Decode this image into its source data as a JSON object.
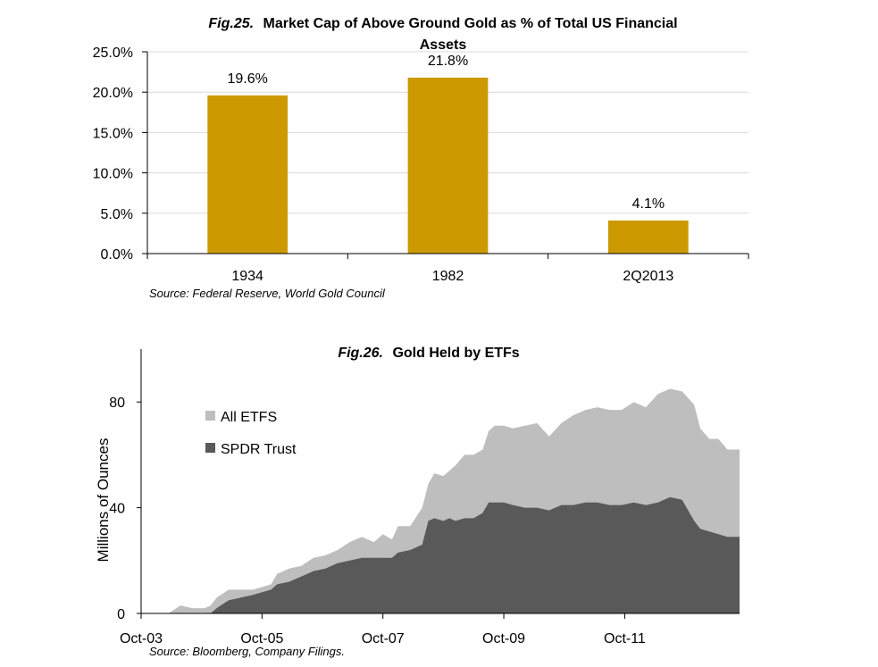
{
  "chart_data": [
    {
      "type": "bar",
      "fig_label": "Fig.25.",
      "title": "Market Cap of Above Ground Gold as % of Total US Financial Assets",
      "title_line1": "Market Cap of Above Ground Gold as % of Total US Financial",
      "title_line2": "Assets",
      "categories": [
        "1934",
        "1982",
        "2Q2013"
      ],
      "values": [
        19.6,
        21.8,
        4.1
      ],
      "data_labels": [
        "19.6%",
        "21.8%",
        "4.1%"
      ],
      "ylim": [
        0,
        25
      ],
      "yticks": [
        0,
        5,
        10,
        15,
        20,
        25
      ],
      "ytick_labels": [
        "0.0%",
        "5.0%",
        "10.0%",
        "15.0%",
        "20.0%",
        "25.0%"
      ],
      "grid": true,
      "bar_color": "#CC9900",
      "source": "Source:  Federal Reserve, World Gold Council"
    },
    {
      "type": "area",
      "fig_label": "Fig.26.",
      "title": "Gold Held by ETFs",
      "ylabel": "Millions of Ounces",
      "ylim": [
        0,
        100
      ],
      "yticks": [
        0,
        40,
        80
      ],
      "ytick_labels": [
        "0",
        "40",
        "80"
      ],
      "xlim": [
        2003.75,
        2013.65
      ],
      "xticks": [
        2003.75,
        2005.75,
        2007.75,
        2009.75,
        2011.75
      ],
      "xtick_labels": [
        "Oct-03",
        "Oct-05",
        "Oct-07",
        "Oct-09",
        "Oct-11"
      ],
      "legend": "top-left",
      "grid": false,
      "source": "Source: Bloomberg, Company Filings.",
      "x": [
        2003.75,
        2004.0,
        2004.2,
        2004.4,
        2004.6,
        2004.7,
        2004.8,
        2004.9,
        2005.0,
        2005.2,
        2005.4,
        2005.6,
        2005.75,
        2005.9,
        2006.0,
        2006.2,
        2006.4,
        2006.6,
        2006.8,
        2007.0,
        2007.2,
        2007.4,
        2007.6,
        2007.75,
        2007.9,
        2008.0,
        2008.2,
        2008.4,
        2008.5,
        2008.6,
        2008.75,
        2008.85,
        2008.95,
        2009.1,
        2009.25,
        2009.4,
        2009.5,
        2009.6,
        2009.75,
        2009.9,
        2010.1,
        2010.3,
        2010.5,
        2010.7,
        2010.9,
        2011.1,
        2011.3,
        2011.5,
        2011.7,
        2011.9,
        2012.1,
        2012.3,
        2012.5,
        2012.7,
        2012.9,
        2013.0,
        2013.15,
        2013.3,
        2013.45,
        2013.55,
        2013.65
      ],
      "series": [
        {
          "name": "All ETFS",
          "color": "#BEBEBE",
          "values": [
            0,
            0,
            0,
            3,
            2,
            2,
            2,
            3,
            6,
            9,
            9,
            9,
            10,
            11,
            15,
            17,
            18,
            21,
            22,
            24,
            27,
            29,
            27,
            30,
            28,
            33,
            33,
            40,
            49,
            53,
            52,
            54,
            56,
            60,
            60,
            62,
            69,
            71,
            71,
            70,
            71,
            72,
            67,
            72,
            75,
            77,
            78,
            77,
            77,
            80,
            78,
            83,
            85,
            84,
            79,
            70,
            66,
            66,
            62,
            62,
            62
          ],
          "scale": "Total"
        },
        {
          "name": "SPDR Trust",
          "color": "#595959",
          "values": [
            0,
            0,
            0,
            0,
            0,
            0,
            0,
            0,
            2,
            5,
            6,
            7,
            8,
            9,
            11,
            12,
            14,
            16,
            17,
            19,
            20,
            21,
            21,
            21,
            21,
            23,
            24,
            26,
            35,
            36,
            35,
            36,
            35,
            36,
            36,
            38,
            42,
            42,
            42,
            41,
            40,
            40,
            39,
            41,
            41,
            42,
            42,
            41,
            41,
            42,
            41,
            42,
            44,
            43,
            35,
            32,
            31,
            30,
            29,
            29,
            29
          ],
          "scale": "Total"
        }
      ]
    }
  ]
}
